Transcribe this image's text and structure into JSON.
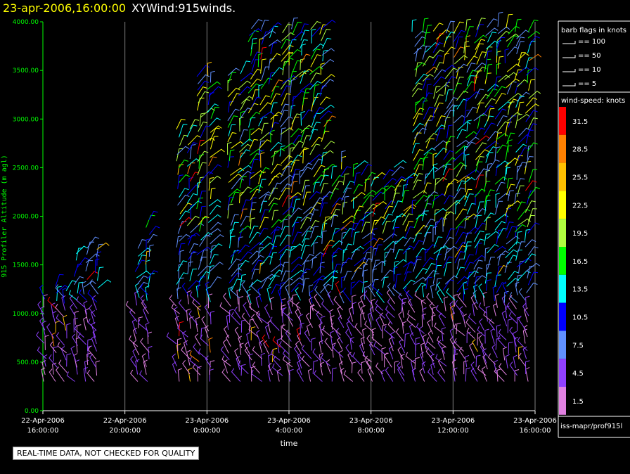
{
  "header": {
    "datetime": "23-apr-2006,16:00:00",
    "name": "XYWind:915winds."
  },
  "footer": {
    "quality_note": "REAL-TIME DATA, NOT CHECKED FOR QUALITY",
    "source": "iss-mapr/prof915l"
  },
  "legend": {
    "barb_title": "barb flags in knots",
    "barbs": [
      "== 100",
      "== 50",
      "== 10",
      "== 5"
    ],
    "speed_title": "wind-speed: knots",
    "speed_scale": [
      {
        "label": "31.5",
        "color": "#ff0000"
      },
      {
        "label": "28.5",
        "color": "#ff8000"
      },
      {
        "label": "25.5",
        "color": "#ffc000"
      },
      {
        "label": "22.5",
        "color": "#ffff00"
      },
      {
        "label": "19.5",
        "color": "#b0ff40"
      },
      {
        "label": "16.5",
        "color": "#00ff00"
      },
      {
        "label": "13.5",
        "color": "#00ffff"
      },
      {
        "label": "10.5",
        "color": "#0000ff"
      },
      {
        "label": "7.5",
        "color": "#6090ff"
      },
      {
        "label": "4.5",
        "color": "#9040ff"
      },
      {
        "label": "1.5",
        "color": "#e080e0"
      }
    ]
  },
  "chart_data": {
    "type": "scatter",
    "ylabel": "915 Profiler Altitude (m agl)",
    "xlabel": "time",
    "ylim": [
      0,
      4000
    ],
    "yticks": [
      "0.00",
      "500.00",
      "1000.00",
      "1500.00",
      "2000.00",
      "2500.00",
      "3000.00",
      "3500.00",
      "4000.00"
    ],
    "xticks": [
      {
        "date": "22-Apr-2006",
        "time": "16:00:00"
      },
      {
        "date": "22-Apr-2006",
        "time": "20:00:00"
      },
      {
        "date": "23-Apr-2006",
        "time": "0:00:00"
      },
      {
        "date": "23-Apr-2006",
        "time": "4:00:00"
      },
      {
        "date": "23-Apr-2006",
        "time": "8:00:00"
      },
      {
        "date": "23-Apr-2006",
        "time": "12:00:00"
      },
      {
        "date": "23-Apr-2006",
        "time": "16:00:00"
      }
    ],
    "xrange_hours": [
      0,
      24
    ],
    "grid": "vertical",
    "colors": {
      "axis": "#00ff00",
      "grid": "#808080"
    }
  }
}
